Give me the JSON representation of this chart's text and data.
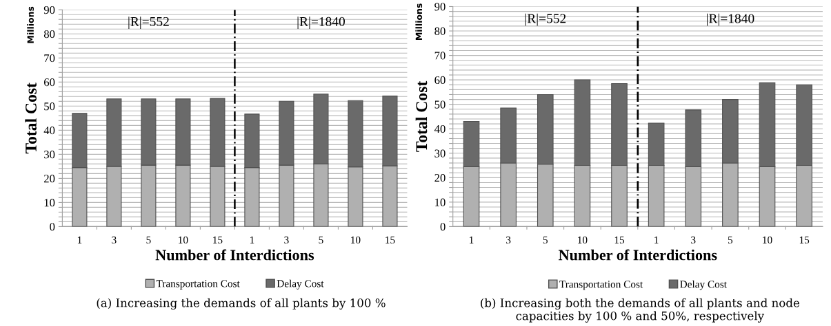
{
  "chart_data": [
    {
      "type": "bar",
      "stacked": true,
      "xlabel": "Number of Interdictions",
      "ylabel": "Total Cost",
      "categories": [
        "1",
        "3",
        "5",
        "10",
        "15",
        "1",
        "3",
        "5",
        "10",
        "15"
      ],
      "series": [
        {
          "name": "Transportation Cost",
          "color": "#b0b0b0",
          "values": [
            24.5,
            25,
            25.5,
            25.5,
            25,
            24.5,
            25.5,
            26,
            24.8,
            25.2
          ]
        },
        {
          "name": "Delay Cost",
          "color": "#6a6a6a",
          "values": [
            22.5,
            28,
            27.5,
            27.5,
            28.2,
            22.2,
            26.5,
            29,
            27.5,
            29
          ]
        }
      ],
      "ylim": [
        0,
        90
      ],
      "yticks": [
        0,
        {
          "value": 2,
          "label": null
        },
        {
          "value": 4,
          "label": null
        },
        {
          "value": 6,
          "label": null
        },
        {
          "value": 8,
          "label": null
        },
        10,
        {
          "value": 12,
          "label": null
        },
        {
          "value": 14,
          "label": null
        },
        {
          "value": 16,
          "label": null
        },
        {
          "value": 18,
          "label": null
        },
        20,
        {
          "value": 22,
          "label": null
        },
        {
          "value": 24,
          "label": null
        },
        {
          "value": 26,
          "label": null
        },
        {
          "value": 28,
          "label": null
        },
        30,
        {
          "value": 32,
          "label": null
        },
        {
          "value": 34,
          "label": null
        },
        {
          "value": 36,
          "label": null
        },
        {
          "value": 38,
          "label": null
        },
        40,
        {
          "value": 42,
          "label": null
        },
        {
          "value": 44,
          "label": null
        },
        {
          "value": 46,
          "label": null
        },
        {
          "value": 48,
          "label": null
        },
        50,
        {
          "value": 52,
          "label": null
        },
        {
          "value": 54,
          "label": null
        },
        {
          "value": 56,
          "label": null
        },
        {
          "value": 58,
          "label": null
        },
        60,
        {
          "value": 62,
          "label": null
        },
        {
          "value": 64,
          "label": null
        },
        {
          "value": 66,
          "label": null
        },
        {
          "value": 68,
          "label": null
        },
        70,
        {
          "value": 72,
          "label": null
        },
        {
          "value": 74,
          "label": null
        },
        {
          "value": 76,
          "label": null
        },
        {
          "value": 78,
          "label": null
        },
        80,
        {
          "value": 82,
          "label": null
        },
        {
          "value": 84,
          "label": null
        },
        {
          "value": 86,
          "label": null
        },
        {
          "value": 88,
          "label": null
        },
        90
      ],
      "grid": "y",
      "legend": "bottom",
      "annotations": [
        "|R|=552",
        "|R|=1840",
        "Millions",
        "(a) Increasing the demands of all plants by 100 %"
      ]
    },
    {
      "type": "bar",
      "stacked": true,
      "xlabel": "Number of Interdictions",
      "ylabel": "Total Cost",
      "categories": [
        "1",
        "3",
        "5",
        "10",
        "15",
        "1",
        "3",
        "5",
        "10",
        "15"
      ],
      "series": [
        {
          "name": "Transportation Cost",
          "color": "#b0b0b0",
          "values": [
            24.5,
            26,
            25.5,
            25,
            25,
            25,
            24.5,
            26,
            24.5,
            25
          ]
        },
        {
          "name": "Delay Cost",
          "color": "#6a6a6a",
          "values": [
            18.5,
            22.5,
            28.5,
            35,
            33.5,
            17.3,
            23.2,
            26,
            34.3,
            33
          ]
        }
      ],
      "ylim": [
        0,
        90
      ],
      "yticks": [
        0,
        {
          "value": 2,
          "label": null
        },
        {
          "value": 4,
          "label": null
        },
        {
          "value": 6,
          "label": null
        },
        {
          "value": 8,
          "label": null
        },
        10,
        {
          "value": 12,
          "label": null
        },
        {
          "value": 14,
          "label": null
        },
        {
          "value": 16,
          "label": null
        },
        {
          "value": 18,
          "label": null
        },
        20,
        {
          "value": 22,
          "label": null
        },
        {
          "value": 24,
          "label": null
        },
        {
          "value": 26,
          "label": null
        },
        {
          "value": 28,
          "label": null
        },
        30,
        {
          "value": 32,
          "label": null
        },
        {
          "value": 34,
          "label": null
        },
        {
          "value": 36,
          "label": null
        },
        {
          "value": 38,
          "label": null
        },
        40,
        {
          "value": 42,
          "label": null
        },
        {
          "value": 44,
          "label": null
        },
        {
          "value": 46,
          "label": null
        },
        {
          "value": 48,
          "label": null
        },
        50,
        {
          "value": 52,
          "label": null
        },
        {
          "value": 54,
          "label": null
        },
        {
          "value": 56,
          "label": null
        },
        {
          "value": 58,
          "label": null
        },
        60,
        {
          "value": 62,
          "label": null
        },
        {
          "value": 64,
          "label": null
        },
        {
          "value": 66,
          "label": null
        },
        {
          "value": 68,
          "label": null
        },
        70,
        {
          "value": 72,
          "label": null
        },
        {
          "value": 74,
          "label": null
        },
        {
          "value": 76,
          "label": null
        },
        {
          "value": 78,
          "label": null
        },
        80,
        {
          "value": 82,
          "label": null
        },
        {
          "value": 84,
          "label": null
        },
        {
          "value": 86,
          "label": null
        },
        {
          "value": 88,
          "label": null
        },
        90
      ],
      "grid": "y",
      "legend": "bottom",
      "annotations": [
        "|R|=552",
        "|R|=1840",
        "Millions",
        "(b) Increasing both the demands of all plants and node capacities by 100 % and 50%, respectively"
      ]
    }
  ]
}
